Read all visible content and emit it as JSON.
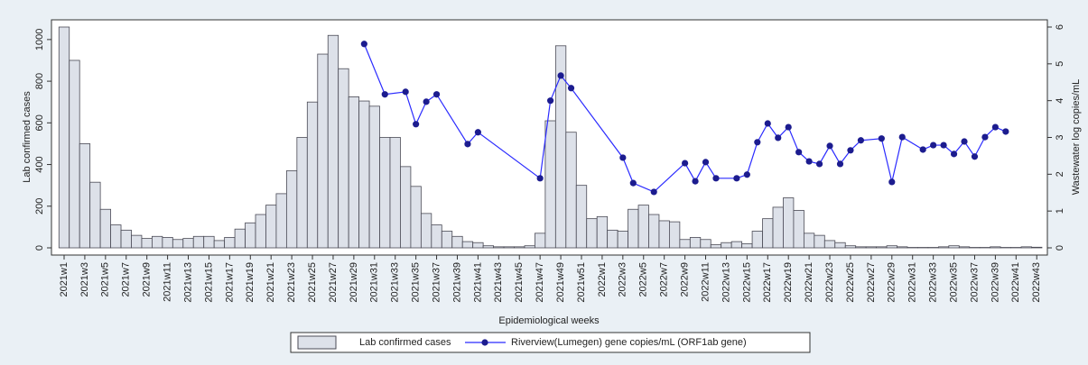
{
  "chart_data": {
    "type": "bar-line",
    "xlabel": "Epidemiological weeks",
    "ylabel": "Lab confirmed cases",
    "y2label": "Wastewater log copies/mL",
    "categories": [
      "2021w1",
      null,
      "2021w3",
      null,
      "2021w5",
      null,
      "2021w7",
      null,
      "2021w9",
      null,
      "2021w11",
      null,
      "2021w13",
      null,
      "2021w15",
      null,
      "2021w17",
      null,
      "2021w19",
      null,
      "2021w21",
      null,
      "2021w23",
      null,
      "2021w25",
      null,
      "2021w27",
      null,
      "2021w29",
      null,
      "2021w31",
      null,
      "2021w33",
      null,
      "2021w35",
      null,
      "2021w37",
      null,
      "2021w39",
      null,
      "2021w41",
      null,
      "2021w43",
      null,
      "2021w45",
      null,
      "2021w47",
      null,
      "2021w49",
      null,
      "2021w51",
      null,
      "2022w1",
      null,
      "2022w3",
      null,
      "2022w5",
      null,
      "2022w7",
      null,
      "2022w9",
      null,
      "2022w11",
      null,
      "2022w13",
      null,
      "2022w15",
      null,
      "2022w17",
      null,
      "2022w19",
      null,
      "2022w21",
      null,
      "2022w23",
      null,
      "2022w25",
      null,
      "2022w27",
      null,
      "2022w29",
      null,
      "2022w31",
      null,
      "2022w33",
      null,
      "2022w35",
      null,
      "2022w37",
      null,
      "2022w39",
      null,
      "2022w41",
      null,
      "2022w43"
    ],
    "series": [
      {
        "name": "Lab confirmed cases",
        "type": "bar",
        "color": "#dde1e9",
        "axis": "y",
        "values": [
          1060,
          900,
          500,
          315,
          185,
          110,
          85,
          60,
          45,
          55,
          50,
          40,
          45,
          55,
          55,
          35,
          50,
          90,
          120,
          160,
          205,
          260,
          370,
          530,
          700,
          930,
          1020,
          860,
          725,
          705,
          680,
          530,
          530,
          390,
          295,
          165,
          110,
          80,
          55,
          30,
          25,
          10,
          5,
          5,
          5,
          10,
          70,
          610,
          970,
          555,
          300,
          140,
          150,
          85,
          80,
          185,
          205,
          160,
          130,
          125,
          40,
          50,
          40,
          15,
          25,
          30,
          20,
          80,
          140,
          195,
          240,
          180,
          70,
          60,
          35,
          25,
          10,
          5,
          5,
          5,
          10,
          5,
          2,
          2,
          2,
          5,
          10,
          5,
          2,
          2,
          5,
          2,
          2,
          5,
          3
        ]
      },
      {
        "name": "Riverview(Lumegen) gene copies/mL (ORF1ab gene)",
        "type": "line",
        "color": "#2b2bff",
        "marker_color": "#1c1c8f",
        "axis": "y2",
        "values": [
          null,
          null,
          null,
          null,
          null,
          null,
          null,
          null,
          null,
          null,
          null,
          null,
          null,
          null,
          null,
          null,
          null,
          null,
          null,
          null,
          null,
          null,
          null,
          null,
          null,
          null,
          null,
          null,
          null,
          5.54,
          null,
          4.17,
          null,
          4.24,
          3.36,
          3.97,
          4.17,
          null,
          null,
          2.82,
          3.14,
          null,
          null,
          null,
          null,
          null,
          1.89,
          4.0,
          4.68,
          4.34,
          null,
          null,
          null,
          null,
          2.45,
          1.76,
          null,
          1.52,
          null,
          null,
          2.3,
          1.81,
          2.33,
          1.89,
          null,
          1.89,
          1.99,
          2.87,
          3.38,
          2.99,
          3.28,
          2.6,
          2.35,
          2.28,
          2.77,
          2.28,
          2.65,
          2.92,
          null,
          2.97,
          1.79,
          3.01,
          null,
          2.67,
          2.79,
          2.79,
          2.55,
          2.89,
          2.48,
          3.01,
          3.28,
          3.16,
          null,
          null,
          null
        ]
      }
    ],
    "ylim": [
      0,
      1060
    ],
    "yticks": [
      0,
      200,
      400,
      600,
      800,
      1000
    ],
    "y2lim": [
      0,
      6
    ],
    "y2ticks": [
      0,
      1,
      2,
      3,
      4,
      5,
      6
    ],
    "legend": "bottom"
  }
}
